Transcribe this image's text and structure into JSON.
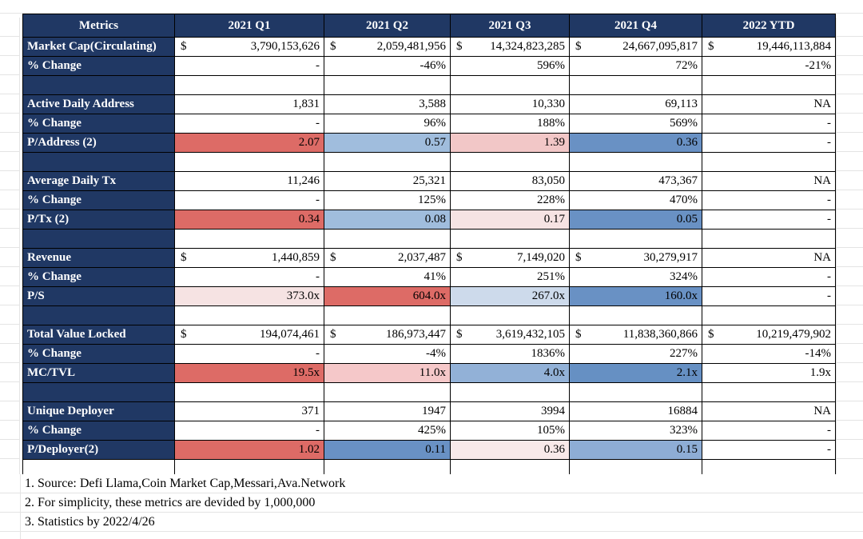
{
  "colors": {
    "navy_header": "#203864",
    "header_text": "#ffffff",
    "table_border": "#000000",
    "gridline": "#e4e4e4",
    "scale_red": "#dd6b66",
    "scale_pink": "#f2c7c7",
    "scale_pale_pink": "#f6e3e3",
    "scale_light_blue": "#cddaeb",
    "scale_mid_light_blue": "#a0bddd",
    "scale_mid_blue": "#92b1d7",
    "scale_blue": "#6991c4"
  },
  "chart_data": {
    "type": "table",
    "columns": [
      "Metrics",
      "2021 Q1",
      "2021 Q2",
      "2021 Q3",
      "2021 Q4",
      "2022 YTD"
    ],
    "rows": [
      {
        "label": "Market Cap(Circulating)",
        "cells": [
          {
            "prefix": "$",
            "value": "3,790,153,626"
          },
          {
            "prefix": "$",
            "value": "2,059,481,956"
          },
          {
            "prefix": "$",
            "value": "14,324,823,285"
          },
          {
            "prefix": "$",
            "value": "24,667,095,817"
          },
          {
            "prefix": "$",
            "value": "19,446,113,884"
          }
        ]
      },
      {
        "label": "% Change",
        "cells": [
          {
            "value": "-"
          },
          {
            "value": "-46%"
          },
          {
            "value": "596%"
          },
          {
            "value": "72%"
          },
          {
            "value": "-21%"
          }
        ]
      },
      {
        "separator": true
      },
      {
        "label": "Active Daily Address",
        "cells": [
          {
            "value": "1,831"
          },
          {
            "value": "3,588"
          },
          {
            "value": "10,330"
          },
          {
            "value": "69,113"
          },
          {
            "value": "NA"
          }
        ]
      },
      {
        "label": "% Change",
        "cells": [
          {
            "value": "-"
          },
          {
            "value": "96%"
          },
          {
            "value": "188%"
          },
          {
            "value": "569%"
          },
          {
            "value": "-"
          }
        ]
      },
      {
        "label": "P/Address (2)",
        "cells": [
          {
            "value": "2.07",
            "bg": "#dd6b66"
          },
          {
            "value": "0.57",
            "bg": "#a0bddd"
          },
          {
            "value": "1.39",
            "bg": "#f2c7c7"
          },
          {
            "value": "0.36",
            "bg": "#6991c4"
          },
          {
            "value": "-"
          }
        ]
      },
      {
        "separator": true
      },
      {
        "label": "Average Daily Tx",
        "cells": [
          {
            "value": "11,246"
          },
          {
            "value": "25,321"
          },
          {
            "value": "83,050"
          },
          {
            "value": "473,367"
          },
          {
            "value": "NA"
          }
        ]
      },
      {
        "label": "% Change",
        "cells": [
          {
            "value": "-"
          },
          {
            "value": "125%"
          },
          {
            "value": "228%"
          },
          {
            "value": "470%"
          },
          {
            "value": "-"
          }
        ]
      },
      {
        "label": "P/Tx (2)",
        "cells": [
          {
            "value": "0.34",
            "bg": "#dd6b66"
          },
          {
            "value": "0.08",
            "bg": "#a0bddd"
          },
          {
            "value": "0.17",
            "bg": "#f6e3e3"
          },
          {
            "value": "0.05",
            "bg": "#6991c4"
          },
          {
            "value": "-"
          }
        ]
      },
      {
        "separator": true
      },
      {
        "label": "Revenue",
        "cells": [
          {
            "prefix": "$",
            "value": "1,440,859"
          },
          {
            "prefix": "$",
            "value": "2,037,487"
          },
          {
            "prefix": "$",
            "value": "7,149,020"
          },
          {
            "prefix": "$",
            "value": "30,279,917"
          },
          {
            "value": "NA"
          }
        ]
      },
      {
        "label": "% Change",
        "cells": [
          {
            "value": "-"
          },
          {
            "value": "41%"
          },
          {
            "value": "251%"
          },
          {
            "value": "324%"
          },
          {
            "value": "-"
          }
        ]
      },
      {
        "label": "P/S",
        "cells": [
          {
            "value": "373.0x",
            "bg": "#f6e3e3"
          },
          {
            "value": "604.0x",
            "bg": "#dd6b66"
          },
          {
            "value": "267.0x",
            "bg": "#cddaeb"
          },
          {
            "value": "160.0x",
            "bg": "#6991c4"
          },
          {
            "value": "-"
          }
        ]
      },
      {
        "separator": true
      },
      {
        "label": "Total Value Locked",
        "cells": [
          {
            "prefix": "$",
            "value": "194,074,461"
          },
          {
            "prefix": "$",
            "value": "186,973,447"
          },
          {
            "prefix": "$",
            "value": "3,619,432,105"
          },
          {
            "prefix": "$",
            "value": "11,838,360,866"
          },
          {
            "prefix": "$",
            "value": "10,219,479,902"
          }
        ]
      },
      {
        "label": "% Change",
        "cells": [
          {
            "value": "-"
          },
          {
            "value": "-4%"
          },
          {
            "value": "1836%"
          },
          {
            "value": "227%"
          },
          {
            "value": "-14%"
          }
        ]
      },
      {
        "label": "MC/TVL",
        "cells": [
          {
            "value": "19.5x",
            "bg": "#dd6b66"
          },
          {
            "value": "11.0x",
            "bg": "#f5c8c9"
          },
          {
            "value": "4.0x",
            "bg": "#92b1d7"
          },
          {
            "value": "2.1x",
            "bg": "#6690c3"
          },
          {
            "value": "1.9x"
          }
        ]
      },
      {
        "separator": true
      },
      {
        "label": "Unique Deployer",
        "cells": [
          {
            "value": "371"
          },
          {
            "value": "1947"
          },
          {
            "value": "3994"
          },
          {
            "value": "16884"
          },
          {
            "value": "NA"
          }
        ]
      },
      {
        "label": "% Change",
        "cells": [
          {
            "value": "-"
          },
          {
            "value": "425%"
          },
          {
            "value": "105%"
          },
          {
            "value": "323%"
          },
          {
            "value": "-"
          }
        ]
      },
      {
        "label": "P/Deployer(2)",
        "cells": [
          {
            "value": "1.02",
            "bg": "#dd6b66"
          },
          {
            "value": "0.11",
            "bg": "#6991c4"
          },
          {
            "value": "0.36",
            "bg": "#f8e9e9"
          },
          {
            "value": "0.15",
            "bg": "#8eadd5"
          },
          {
            "value": "-"
          }
        ]
      },
      {
        "blank": true
      }
    ]
  },
  "notes": {
    "line1": "1. Source: Defi Llama,Coin Market Cap,Messari,Ava.Network",
    "line2": "2. For simplicity, these metrics are devided by 1,000,000",
    "line3": "3. Statistics by 2022/4/26"
  }
}
